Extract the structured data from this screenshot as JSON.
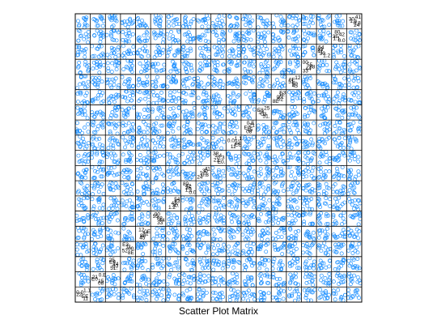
{
  "chart_data": {
    "type": "scatter",
    "title": "Scatter Plot Matrix",
    "subtype": "scatter-plot-matrix",
    "grid": false,
    "legend": "none",
    "variable_count": 19,
    "marker_color": "#1E90FF",
    "marker_shape": "open-circle",
    "diagonal": "anti-diagonal, variable labels drawn as overlapping text",
    "note": "Individual point values are too dense to read; panels show many scattered points across 19x19 variable pairs."
  }
}
